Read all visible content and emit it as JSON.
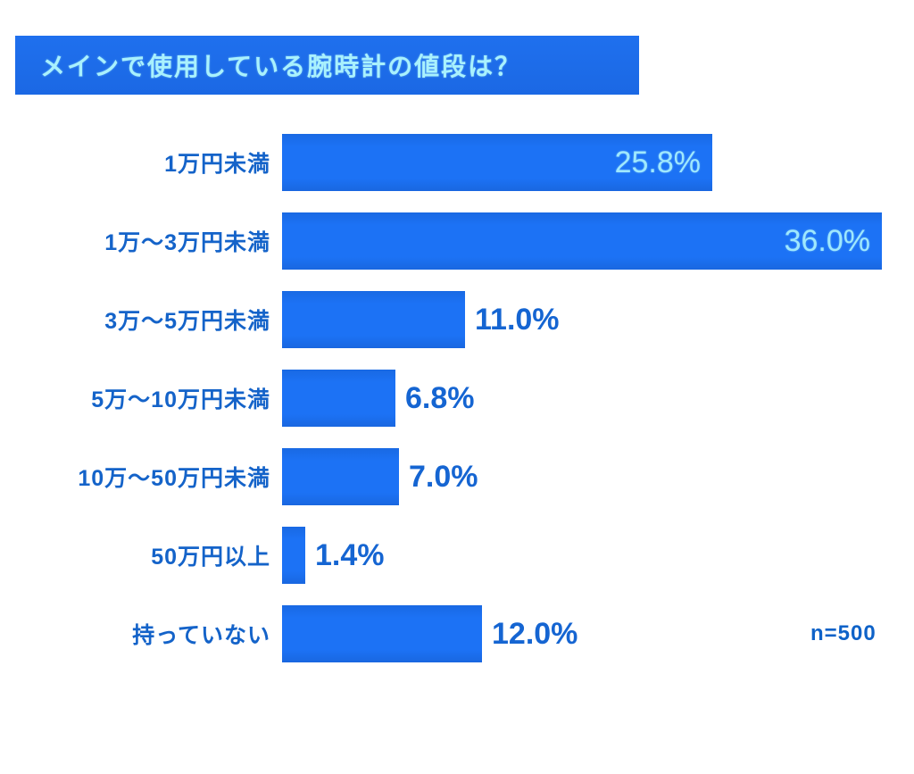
{
  "header": {
    "title": "メインで使用している腕時計の値段は？"
  },
  "footnote": {
    "sample_size": "n=500"
  },
  "chart_data": {
    "type": "bar",
    "orientation": "horizontal",
    "title": "メインで使用している腕時計の値段は？",
    "categories": [
      "1万円未満",
      "1万～3万円未満",
      "3万～5万円未満",
      "5万～10万円未満",
      "10万～50万円未満",
      "50万円以上",
      "持っていない"
    ],
    "values": [
      25.8,
      36.0,
      11.0,
      6.8,
      7.0,
      1.4,
      12.0
    ],
    "value_labels": [
      "25.8%",
      "36.0%",
      "11.0%",
      "6.8%",
      "7.0%",
      "1.4%",
      "12.0%"
    ],
    "value_label_positions": [
      "inside",
      "inside",
      "outside",
      "outside",
      "outside",
      "outside",
      "outside"
    ],
    "annotation": "n=500",
    "xlim": [
      0,
      38.5
    ],
    "grid": false,
    "legend": false,
    "colors": {
      "bar_fill": "#1c72f5",
      "title_bg": "#1b6ae8",
      "title_text": "#a9f1fd",
      "category_label": "#1463c9",
      "value_inside": "#9fe8fd",
      "value_outside": "#1565d2",
      "sample_size_text": "#0e62c8",
      "background": "#ffffff"
    }
  }
}
